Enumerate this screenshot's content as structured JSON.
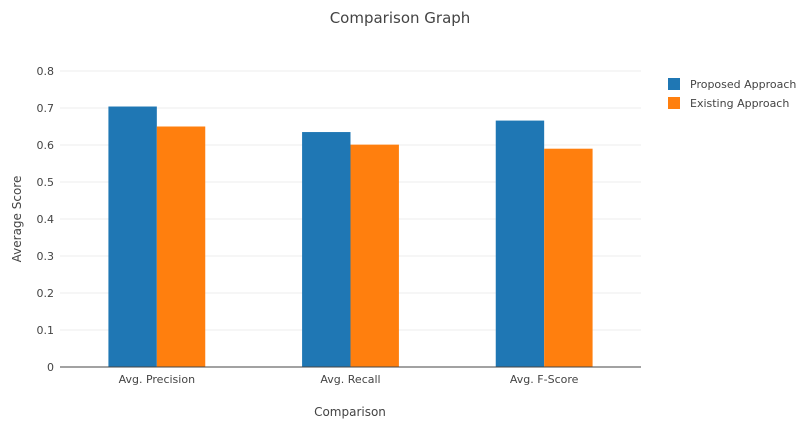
{
  "chart_data": {
    "type": "bar",
    "title": "Comparison Graph",
    "xlabel": "Comparison",
    "ylabel": "Average Score",
    "categories": [
      "Avg. Precision",
      "Avg. Recall",
      "Avg. F-Score"
    ],
    "series": [
      {
        "name": "Proposed Approach",
        "values": [
          0.704,
          0.635,
          0.666
        ],
        "color": "#1f77b4"
      },
      {
        "name": "Existing Approach",
        "values": [
          0.65,
          0.601,
          0.59
        ],
        "color": "#ff7f0e"
      }
    ],
    "ylim": [
      0,
      0.8
    ],
    "yticks": [
      "0",
      "0.1",
      "0.2",
      "0.3",
      "0.4",
      "0.5",
      "0.6",
      "0.7",
      "0.8"
    ],
    "grid": true,
    "legend": "top-right"
  }
}
